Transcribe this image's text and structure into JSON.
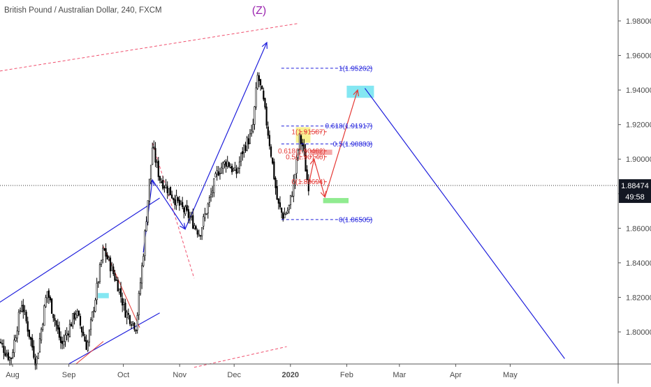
{
  "chart_data": {
    "type": "candlestick",
    "title": "British Pound / Australian Dollar, 240, FXCM",
    "wave_label": "(Z)",
    "y_axis": {
      "range": [
        1.7815,
        1.9885
      ],
      "ticks": [
        "1.98000",
        "1.96000",
        "1.94000",
        "1.92000",
        "1.90000",
        "1.88000",
        "1.86000",
        "1.84000",
        "1.82000",
        "1.80000"
      ]
    },
    "x_axis": {
      "tick_labels": [
        "Aug",
        "Sep",
        "Oct",
        "Nov",
        "Dec",
        "2020",
        "Feb",
        "Mar",
        "Apr",
        "May"
      ]
    },
    "current_price": {
      "value": 1.88474,
      "label": "1.88474",
      "countdown": "49:58"
    },
    "price_path": [
      {
        "x": "2019-07-23",
        "y": 1.797
      },
      {
        "x": "2019-07-31",
        "y": 1.784
      },
      {
        "x": "2019-08-06",
        "y": 1.817
      },
      {
        "x": "2019-08-14",
        "y": 1.782
      },
      {
        "x": "2019-08-20",
        "y": 1.824
      },
      {
        "x": "2019-08-28",
        "y": 1.792
      },
      {
        "x": "2019-09-05",
        "y": 1.812
      },
      {
        "x": "2019-09-11",
        "y": 1.791
      },
      {
        "x": "2019-09-20",
        "y": 1.848
      },
      {
        "x": "2019-09-24",
        "y": 1.838
      },
      {
        "x": "2019-09-28",
        "y": 1.827
      },
      {
        "x": "2019-10-02",
        "y": 1.812
      },
      {
        "x": "2019-10-08",
        "y": 1.803
      },
      {
        "x": "2019-10-12",
        "y": 1.846
      },
      {
        "x": "2019-10-17",
        "y": 1.907
      },
      {
        "x": "2019-10-21",
        "y": 1.889
      },
      {
        "x": "2019-10-26",
        "y": 1.882
      },
      {
        "x": "2019-11-01",
        "y": 1.873
      },
      {
        "x": "2019-11-06",
        "y": 1.867
      },
      {
        "x": "2019-11-12",
        "y": 1.857
      },
      {
        "x": "2019-11-16",
        "y": 1.871
      },
      {
        "x": "2019-11-22",
        "y": 1.893
      },
      {
        "x": "2019-11-27",
        "y": 1.899
      },
      {
        "x": "2019-12-02",
        "y": 1.891
      },
      {
        "x": "2019-12-06",
        "y": 1.906
      },
      {
        "x": "2019-12-11",
        "y": 1.915
      },
      {
        "x": "2019-12-14",
        "y": 1.949
      },
      {
        "x": "2019-12-17",
        "y": 1.934
      },
      {
        "x": "2019-12-21",
        "y": 1.906
      },
      {
        "x": "2019-12-25",
        "y": 1.874
      },
      {
        "x": "2019-12-28",
        "y": 1.867
      },
      {
        "x": "2019-12-31",
        "y": 1.871
      },
      {
        "x": "2020-01-03",
        "y": 1.887
      },
      {
        "x": "2020-01-06",
        "y": 1.912
      },
      {
        "x": "2020-01-08",
        "y": 1.907
      },
      {
        "x": "2020-01-10",
        "y": 1.889
      },
      {
        "x": "2020-01-11",
        "y": 1.885
      }
    ],
    "fibonacci_levels": [
      {
        "label": "1(1.95262)",
        "value": 1.95262,
        "color": "#1f1fdc"
      },
      {
        "label": "0.618(1.91917)",
        "value": 1.91917,
        "color": "#1f1fdc"
      },
      {
        "label": "0.5(1.90883)",
        "value": 1.90883,
        "color": "#1f1fdc"
      },
      {
        "label": "0(1.86505)",
        "value": 1.86505,
        "color": "#1f1fdc"
      },
      {
        "label": "1(1.91587)",
        "value": 1.91587,
        "color": "#e53935"
      },
      {
        "label": "0.618(1.90482)",
        "value": 1.90482,
        "color": "#e53935"
      },
      {
        "label": "0.5(1.90140)",
        "value": 1.9014,
        "color": "#e53935"
      },
      {
        "label": "0(1.88694)",
        "value": 1.88694,
        "color": "#e53935"
      }
    ],
    "projection": {
      "path": [
        {
          "x": "2020-01-11",
          "y": 1.885
        },
        {
          "x": "2020-01-14",
          "y": 1.9
        },
        {
          "x": "2020-01-20",
          "y": 1.878
        },
        {
          "x": "2020-02-07",
          "y": 1.94
        }
      ],
      "target_down": {
        "x": "2020-05-31",
        "y": 1.7845
      }
    },
    "colors": {
      "candle": "#000000",
      "trendline": "#1f1fdc",
      "annotation_red": "#e53935",
      "channel_dashed": "#f0506e",
      "target_zone": "#6fe3f0",
      "buy_zone": "#7ce87c",
      "sell_zone": "#f29a9a",
      "highlight_zone": "#f8f080",
      "wave_label": "#9c27b0",
      "axis_text": "#4a4a4a"
    },
    "grid": false,
    "legend": "none"
  }
}
